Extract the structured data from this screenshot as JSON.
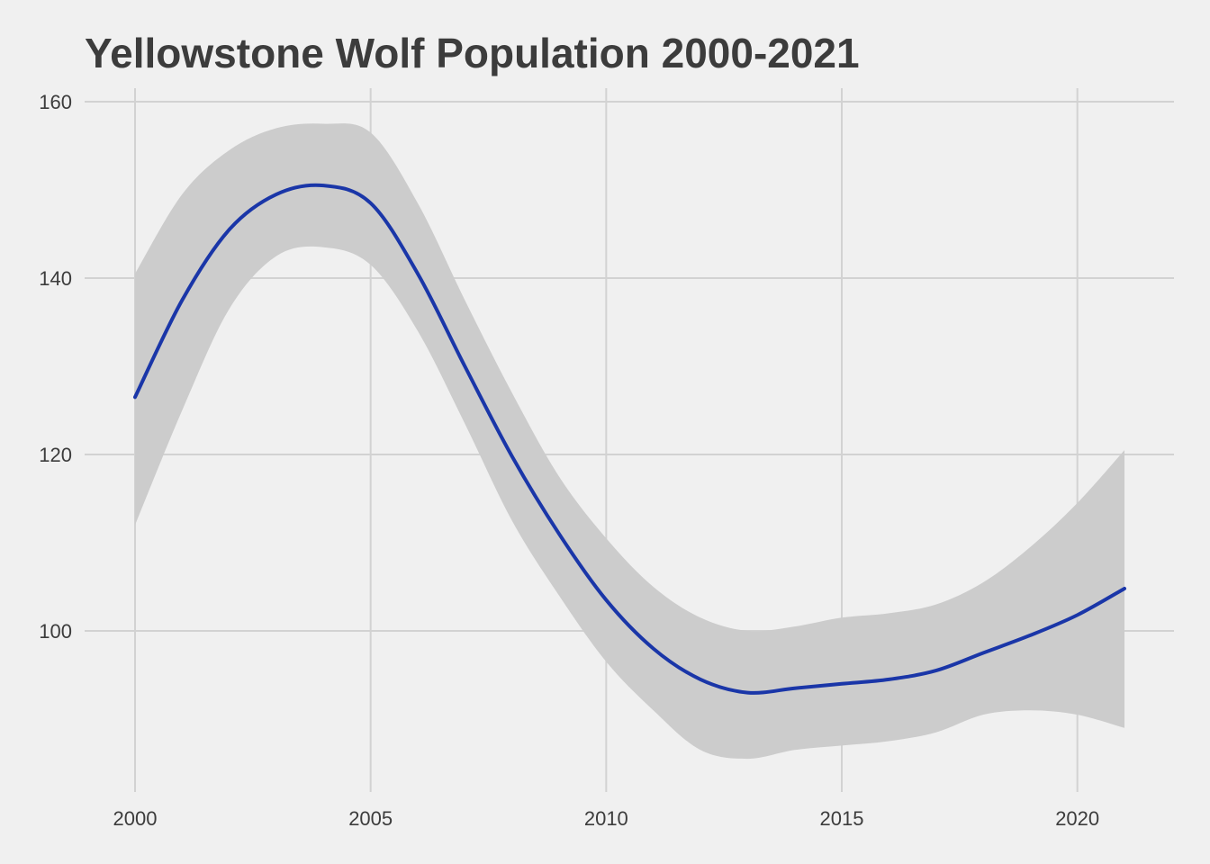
{
  "chart_data": {
    "type": "line",
    "title": "Yellowstone Wolf Population 2000-2021",
    "xlabel": "",
    "ylabel": "",
    "xlim": [
      2000,
      2021
    ],
    "ylim": [
      80,
      160
    ],
    "grid": true,
    "legend": "none",
    "x_ticks": [
      "2000",
      "2005",
      "2010",
      "2015",
      "2020"
    ],
    "y_ticks": [
      "100",
      "120",
      "140",
      "160"
    ],
    "series": [
      {
        "kind": "smooth",
        "color": "#1a36a8",
        "x": [
          2000,
          2001,
          2002,
          2003,
          2004,
          2005,
          2006,
          2007,
          2008,
          2009,
          2010,
          2011,
          2012,
          2013,
          2014,
          2015,
          2016,
          2017,
          2018,
          2019,
          2020,
          2021
        ],
        "y": [
          126.5,
          137.5,
          145.5,
          149.5,
          150.5,
          148.5,
          140.5,
          130.0,
          119.8,
          111.0,
          103.5,
          98.0,
          94.5,
          93.0,
          93.5,
          94.0,
          94.5,
          95.5,
          97.5,
          99.5,
          101.8,
          104.8
        ],
        "ci_lower": [
          112.0,
          125.0,
          136.5,
          142.5,
          143.5,
          141.5,
          134.0,
          123.5,
          112.5,
          104.0,
          96.5,
          91.0,
          86.5,
          85.5,
          86.5,
          87.0,
          87.5,
          88.5,
          90.5,
          91.0,
          90.5,
          89.0
        ],
        "ci_upper": [
          140.5,
          149.5,
          154.5,
          157.0,
          157.5,
          156.5,
          148.5,
          137.5,
          127.0,
          117.5,
          110.5,
          105.0,
          101.5,
          100.0,
          100.5,
          101.5,
          102.0,
          103.0,
          105.5,
          109.5,
          114.5,
          120.5
        ]
      }
    ]
  },
  "colors": {
    "background": "#f0f0f0",
    "grid": "#d2d2d2",
    "line": "#1a36a8",
    "ribbon": "#cccccc",
    "text": "#3c3c3c"
  }
}
